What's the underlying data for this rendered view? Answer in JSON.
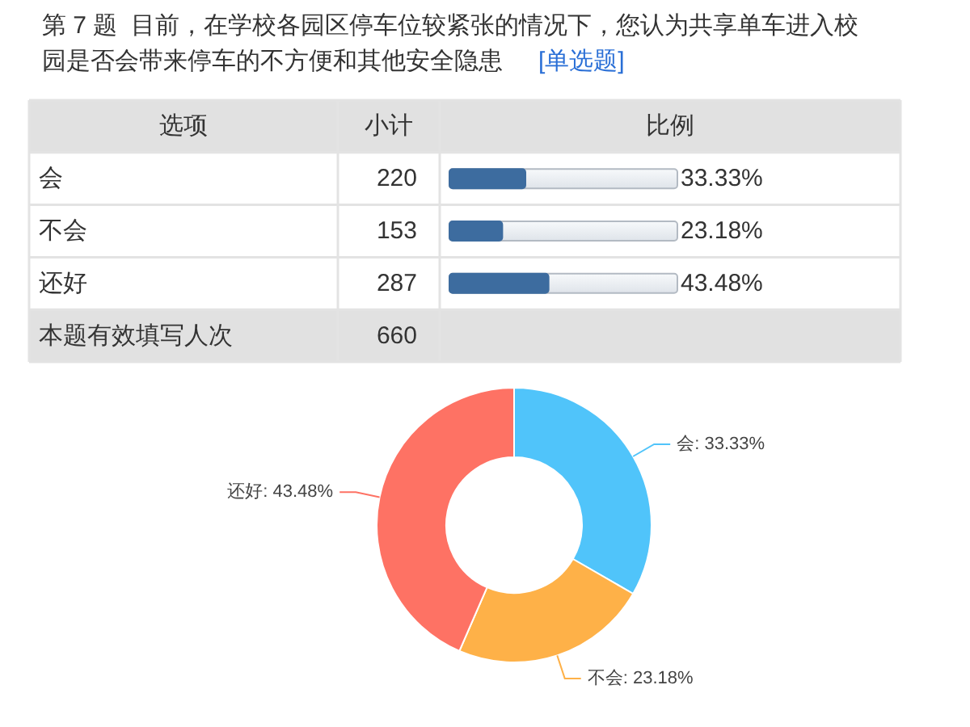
{
  "chart_data": [
    {
      "type": "bar",
      "orientation": "horizontal",
      "title": "第 7 题  目前，在学校各园区停车位较紧张的情况下，您认为共享单车进入校园是否会带来停车的不方便和其他安全隐患",
      "subtitle": "[单选题]",
      "ylabel": "选项",
      "xlabel": "比例",
      "categories": [
        "会",
        "不会",
        "还好"
      ],
      "values": [
        33.33,
        23.18,
        43.48
      ],
      "value_labels": [
        "33.33%",
        "23.18%",
        "43.48%"
      ],
      "color": "#3d6c9f",
      "xlim": [
        0,
        100
      ],
      "annotations": [
        "小计",
        "220",
        "153",
        "287",
        "本题有效填写人次",
        "660"
      ]
    },
    {
      "type": "donut",
      "categories": [
        "会",
        "不会",
        "还好"
      ],
      "values": [
        33.33,
        23.18,
        43.48
      ],
      "colors": [
        "#50c4fa",
        "#feb148",
        "#fe7264"
      ],
      "value_labels": [
        ": 33.33%",
        ": 23.18%",
        ": 43.48%"
      ]
    }
  ]
}
